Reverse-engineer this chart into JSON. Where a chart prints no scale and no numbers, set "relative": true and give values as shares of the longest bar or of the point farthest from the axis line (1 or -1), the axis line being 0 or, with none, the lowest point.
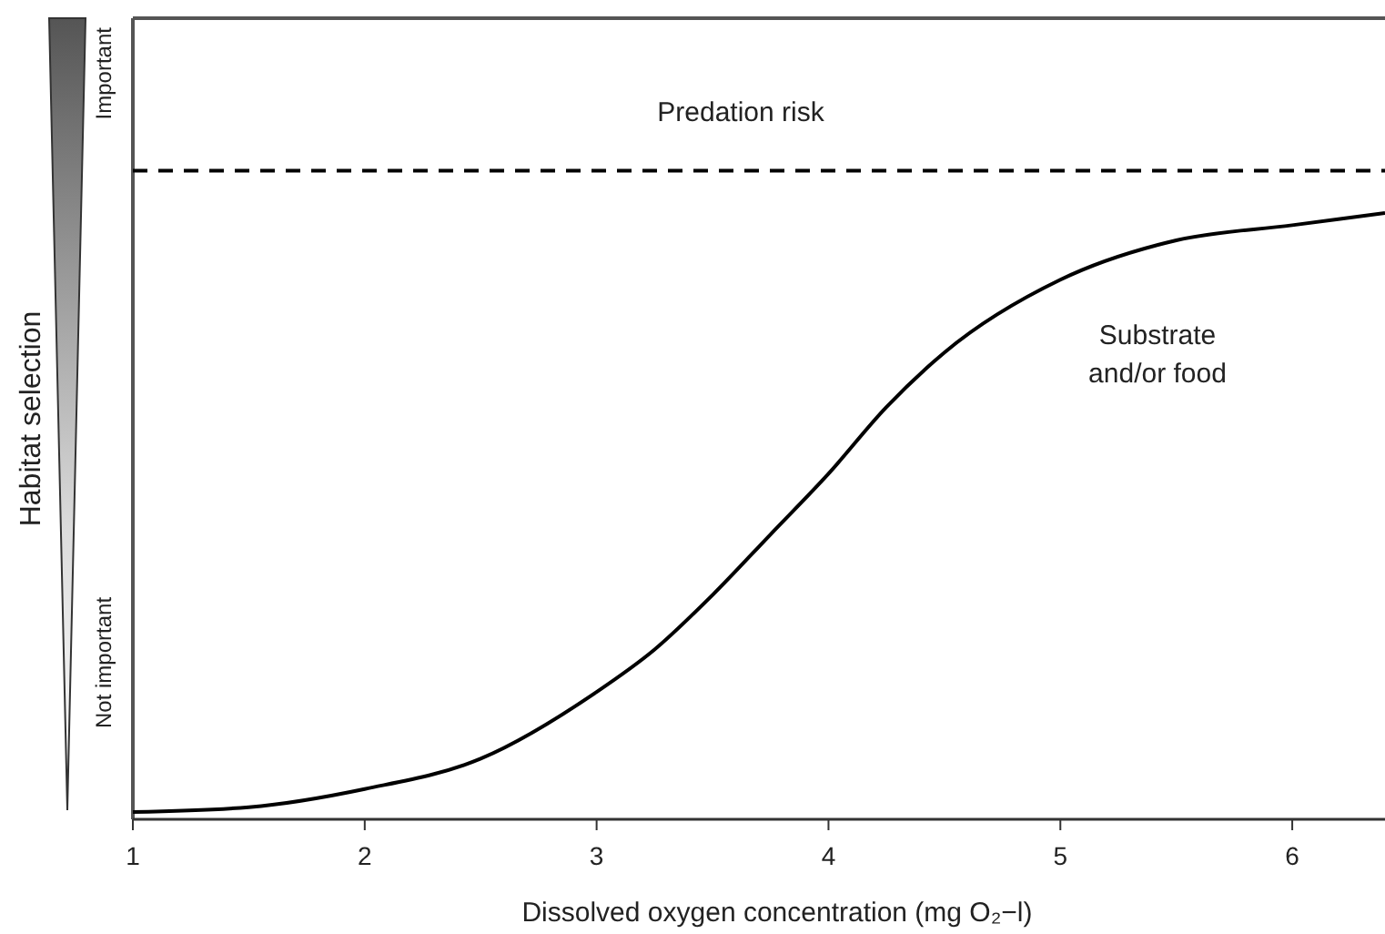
{
  "chart_data": {
    "type": "line",
    "relative": true,
    "xlabel": "Dissolved oxygen concentration (mg O₂−l)",
    "ylabel": "Habitat selection",
    "x": [
      1,
      1.5,
      2,
      2.5,
      3,
      3.25,
      3.5,
      3.75,
      4,
      4.25,
      4.5,
      5,
      5.5,
      6,
      6.4
    ],
    "series": [
      {
        "name": "Substrate\nand/or food",
        "color": "#000000",
        "values": [
          0.012,
          0.02,
          0.05,
          0.1,
          0.21,
          0.28,
          0.37,
          0.47,
          0.57,
          0.68,
          0.77,
          0.89,
          0.955,
          0.98,
          1
        ]
      }
    ],
    "xlim": [
      1,
      6.4
    ],
    "xticks": [
      1,
      2,
      3,
      4,
      5,
      6
    ],
    "ref_lines": [
      {
        "axis": "y",
        "value": 1.07,
        "label": "Predation risk",
        "color": "#000000",
        "line_style": "dashed"
      }
    ],
    "annotations": [
      "Important",
      "Not important"
    ],
    "grid": false,
    "marker": "none",
    "line_style": "solid"
  }
}
